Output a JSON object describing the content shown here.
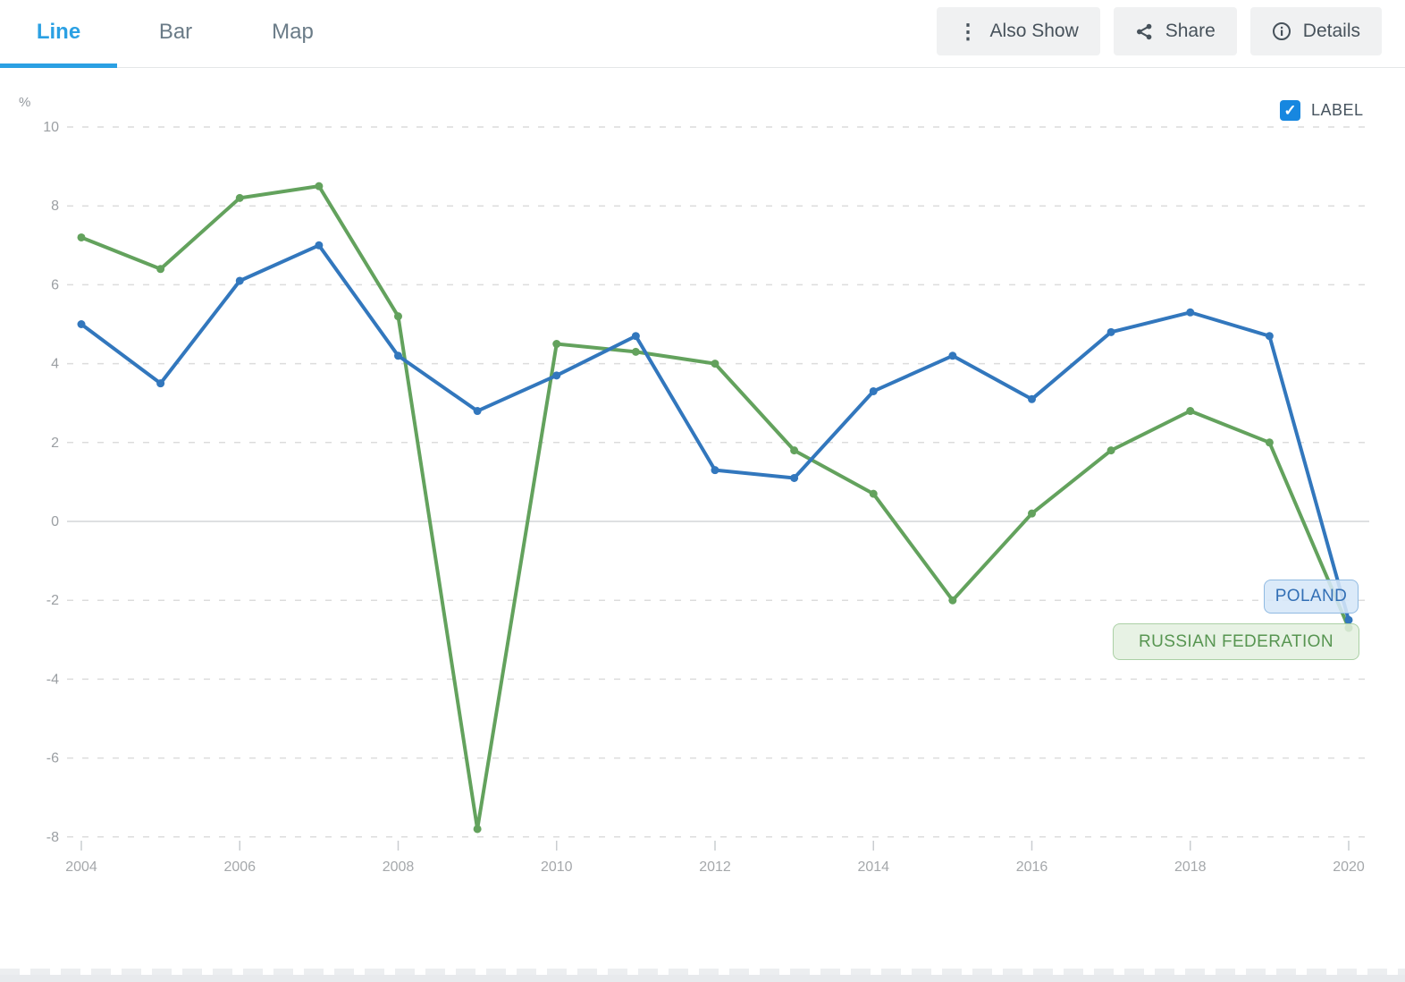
{
  "tabs": [
    {
      "label": "Line",
      "active": true
    },
    {
      "label": "Bar",
      "active": false
    },
    {
      "label": "Map",
      "active": false
    }
  ],
  "toolbar": {
    "also_show_label": "Also Show",
    "share_label": "Share",
    "details_label": "Details"
  },
  "label_toggle": {
    "label": "LABEL",
    "checked": true,
    "checkmark": "✓"
  },
  "colors": {
    "active_tab": "#2ba0e3",
    "checkbox_blue": "#1787e0",
    "poland_blue": "#3277bd",
    "russia_green": "#63a25d"
  },
  "chart_data": {
    "type": "line",
    "title": "",
    "unit": "%",
    "xlabel": "",
    "ylabel": "%",
    "x_years": [
      2004,
      2005,
      2006,
      2007,
      2008,
      2009,
      2010,
      2011,
      2012,
      2013,
      2014,
      2015,
      2016,
      2017,
      2018,
      2019,
      2020
    ],
    "x_tick_years": [
      2004,
      2006,
      2008,
      2010,
      2012,
      2014,
      2016,
      2018,
      2020
    ],
    "y_ticks": [
      10,
      8,
      6,
      4,
      2,
      0,
      -2,
      -4,
      -6,
      -8
    ],
    "ylim": [
      -8,
      10
    ],
    "grid": "horizontal dashed gridlines, solid zero line",
    "legend_position": "end-of-line labels",
    "series": [
      {
        "name": "RUSSIAN FEDERATION",
        "slug": "russian-federation",
        "color": "#63a25d",
        "values": [
          7.2,
          6.4,
          8.2,
          8.5,
          5.2,
          -7.8,
          4.5,
          4.3,
          4.0,
          1.8,
          0.7,
          -2.0,
          0.2,
          1.8,
          2.8,
          2.0,
          -2.7
        ]
      },
      {
        "name": "POLAND",
        "slug": "poland",
        "color": "#3277bd",
        "values": [
          5.0,
          3.5,
          6.1,
          7.0,
          4.2,
          2.8,
          3.7,
          4.7,
          1.3,
          1.1,
          3.3,
          4.2,
          3.1,
          4.8,
          5.3,
          4.7,
          -2.5
        ]
      }
    ]
  }
}
